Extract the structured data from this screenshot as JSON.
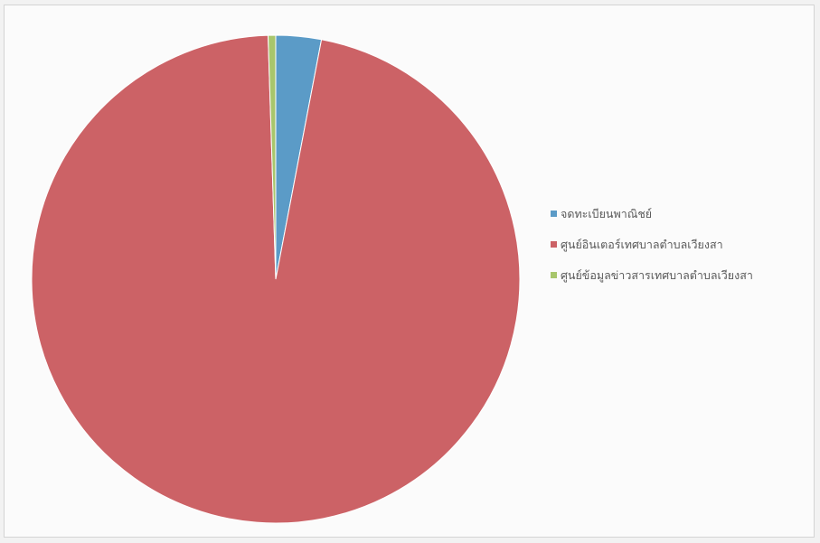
{
  "chart_data": {
    "type": "pie",
    "start_angle_deg": 0,
    "direction": "clockwise",
    "legend_position": "right",
    "slices": [
      {
        "label": "จดทะเบียนพาณิชย์",
        "value": 3.0,
        "color": "#5b9bc7"
      },
      {
        "label": "ศูนย์อินเตอร์เทศบาลตำบลเวียงสา",
        "value": 96.5,
        "color": "#cc6266"
      },
      {
        "label": "ศูนย์ข้อมูลข่าวสารเทศบาลตำบลเวียงสา",
        "value": 0.5,
        "color": "#a8c66c"
      }
    ]
  }
}
